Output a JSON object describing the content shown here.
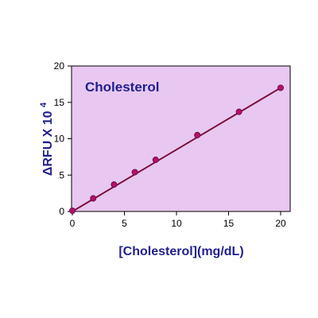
{
  "chart_data": {
    "type": "scatter",
    "title": "Cholesterol",
    "xlabel": "[Cholesterol](mg/dL)",
    "ylabel_prefix": "ΔRFU X 10",
    "ylabel_exponent": "4",
    "xlim": [
      0,
      20
    ],
    "ylim": [
      0,
      20
    ],
    "x_ticks": [
      "0",
      "5",
      "10",
      "15",
      "20"
    ],
    "x_tick_values": [
      0,
      5,
      10,
      15,
      20
    ],
    "y_ticks": [
      "0",
      "5",
      "10",
      "15",
      "20"
    ],
    "y_tick_values": [
      0,
      5,
      10,
      15,
      20
    ],
    "grid": false,
    "series": [
      {
        "x": [
          0,
          2,
          4,
          6,
          8,
          12,
          16,
          20
        ],
        "y": [
          0.1,
          1.8,
          3.7,
          5.4,
          7.1,
          10.5,
          13.7,
          17.0
        ]
      }
    ],
    "fit_line": {
      "x": [
        0,
        20
      ],
      "y": [
        0,
        17.0
      ]
    },
    "colors": {
      "plot_bg": "#e8c8f0",
      "marker": "#b5106a",
      "marker_edge": "#5a0a3a",
      "line": "#7a0d3a",
      "text": "#1f1f8f",
      "axis": "#000000"
    }
  }
}
